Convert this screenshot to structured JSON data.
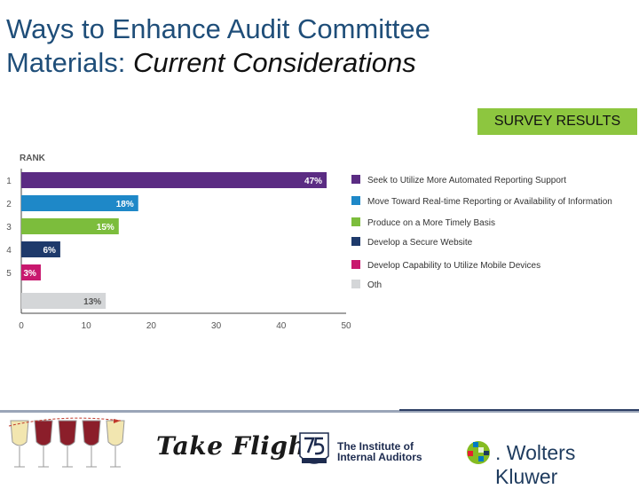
{
  "slide": {
    "title_line1": "Ways to Enhance Audit Committee",
    "title_line2_plain": "Materials: ",
    "title_line2_italic": "Current Considerations",
    "badge": "SURVEY RESULTS"
  },
  "footer": {
    "takeflight": "Take Flight",
    "iia_line1": "The Institute of",
    "iia_line2": "Internal Auditors",
    "wk_name": ". Wolters Kluwer"
  },
  "colors": {
    "title": "#1f4e79",
    "badge": "#8dc63f",
    "purple": "#5b2c83",
    "blue": "#1e88c8",
    "green": "#7cbd3c",
    "navy": "#1e3a6b",
    "magenta": "#c8186e",
    "gray": "#d4d6d8"
  },
  "chart_data": {
    "type": "bar",
    "orientation": "horizontal",
    "ylabel": "RANK",
    "categories": [
      "1",
      "2",
      "3",
      "4",
      "5",
      ""
    ],
    "values": [
      47,
      18,
      15,
      6,
      3,
      13
    ],
    "value_labels": [
      "47%",
      "18%",
      "15%",
      "6%",
      "3%",
      "13%"
    ],
    "bar_colors": [
      "#5b2c83",
      "#1e88c8",
      "#7cbd3c",
      "#1e3a6b",
      "#c8186e",
      "#d4d6d8"
    ],
    "legend": [
      "Seek to Utilize More Automated Reporting Support",
      "Move Toward Real-time Reporting or Availability of Information",
      "Produce on a More Timely Basis",
      "Develop a Secure Website",
      "Develop Capability to Utilize Mobile Devices",
      "Oth"
    ],
    "xlim": [
      0,
      50
    ],
    "xticks": [
      "0",
      "10",
      "20",
      "30",
      "40",
      "50"
    ],
    "legend_position": "right",
    "grid": false
  }
}
